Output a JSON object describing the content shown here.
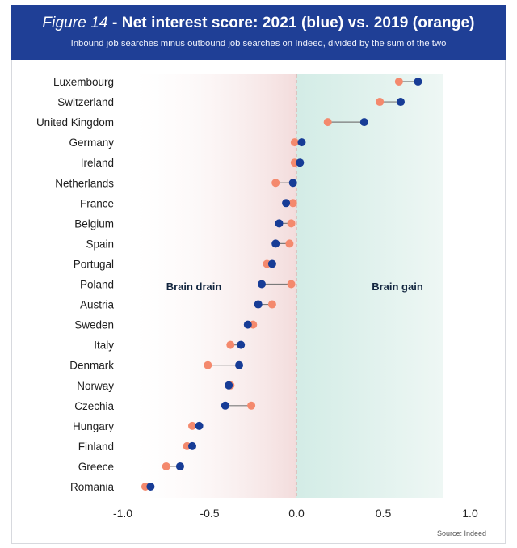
{
  "header": {
    "figure_label": "Figure 14",
    "title": " - Net interest score: 2021 (blue) vs. 2019 (orange)",
    "subtitle": "Inbound job searches minus outbound job searches on Indeed, divided by the sum of the two"
  },
  "source": "Source: Indeed",
  "colors": {
    "header_bg": "#1f3f96",
    "series_2021": "#173c96",
    "series_2019": "#f4896d",
    "connector": "#7a7a7a",
    "drain_region": "#f3dcdc",
    "gain_region": "#d3ece6",
    "label_text": "#13263f"
  },
  "chart_data": {
    "type": "dumbbell",
    "title": "Net interest score: 2021 (blue) vs. 2019 (orange)",
    "xlim": [
      -1.0,
      1.0
    ],
    "xticks": [
      "-1.0",
      "-0.5",
      "0.0",
      "0.5",
      "1.0"
    ],
    "shaded_regions": [
      {
        "label": "Brain drain",
        "from": -1.0,
        "to": 0.0
      },
      {
        "label": "Brain gain",
        "from": 0.0,
        "to": 1.0
      }
    ],
    "categories": [
      "Luxembourg",
      "Switzerland",
      "United Kingdom",
      "Germany",
      "Ireland",
      "Netherlands",
      "France",
      "Belgium",
      "Spain",
      "Portugal",
      "Poland",
      "Austria",
      "Sweden",
      "Italy",
      "Denmark",
      "Norway",
      "Czechia",
      "Hungary",
      "Finland",
      "Greece",
      "Romania"
    ],
    "series": [
      {
        "name": "2021 (blue)",
        "values": [
          0.7,
          0.6,
          0.39,
          0.03,
          0.02,
          -0.02,
          -0.06,
          -0.1,
          -0.12,
          -0.14,
          -0.2,
          -0.22,
          -0.28,
          -0.32,
          -0.33,
          -0.39,
          -0.41,
          -0.56,
          -0.6,
          -0.67,
          -0.84
        ]
      },
      {
        "name": "2019 (orange)",
        "values": [
          0.59,
          0.48,
          0.18,
          -0.01,
          -0.01,
          -0.12,
          -0.02,
          -0.03,
          -0.04,
          -0.17,
          -0.03,
          -0.14,
          -0.25,
          -0.38,
          -0.51,
          -0.38,
          -0.26,
          -0.6,
          -0.63,
          -0.75,
          -0.87
        ]
      }
    ]
  }
}
